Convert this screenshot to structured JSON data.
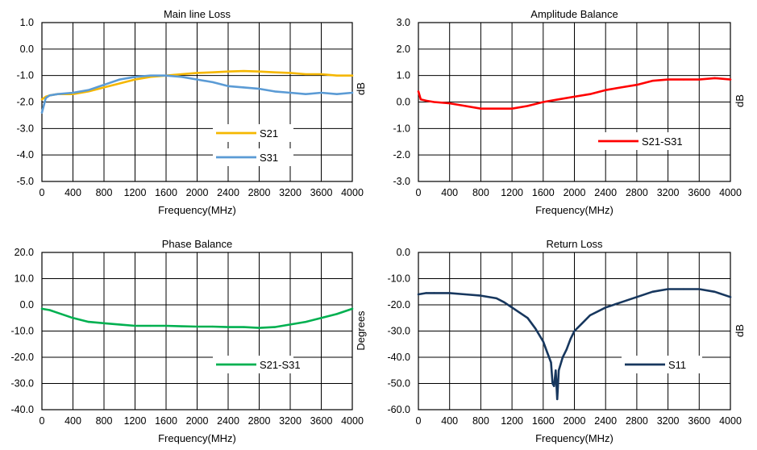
{
  "chart_data": [
    {
      "type": "line",
      "title": "Main line Loss",
      "xlabel": "Frequency(MHz)",
      "ylabel": "",
      "right_label": "dB",
      "xlim": [
        0,
        4000
      ],
      "ylim": [
        -5,
        1
      ],
      "grid": true,
      "legend_position": "bottom-right",
      "xticks": [
        "0",
        "400",
        "800",
        "1200",
        "1600",
        "2000",
        "2400",
        "2800",
        "3200",
        "3600",
        "4000"
      ],
      "yticks": [
        "1.0",
        "0.0",
        "-1.0",
        "-2.0",
        "-3.0",
        "-4.0",
        "-5.0"
      ],
      "x": [
        0,
        50,
        100,
        200,
        400,
        600,
        800,
        1000,
        1200,
        1400,
        1600,
        1800,
        2000,
        2200,
        2400,
        2600,
        2800,
        3000,
        3200,
        3400,
        3600,
        3800,
        4000
      ],
      "series": [
        {
          "name": "S21",
          "color": "#F5B700",
          "values": [
            -1.9,
            -1.8,
            -1.75,
            -1.7,
            -1.7,
            -1.6,
            -1.45,
            -1.3,
            -1.15,
            -1.05,
            -1.0,
            -0.95,
            -0.9,
            -0.88,
            -0.85,
            -0.83,
            -0.85,
            -0.88,
            -0.9,
            -0.95,
            -0.95,
            -1.0,
            -1.0
          ]
        },
        {
          "name": "S31",
          "color": "#5B9BD5",
          "values": [
            -2.4,
            -1.85,
            -1.75,
            -1.7,
            -1.65,
            -1.55,
            -1.35,
            -1.15,
            -1.05,
            -1.0,
            -1.0,
            -1.05,
            -1.15,
            -1.25,
            -1.4,
            -1.45,
            -1.5,
            -1.6,
            -1.65,
            -1.7,
            -1.65,
            -1.7,
            -1.65
          ]
        }
      ]
    },
    {
      "type": "line",
      "title": "Amplitude Balance",
      "xlabel": "Frequency(MHz)",
      "ylabel": "",
      "right_label": "dB",
      "xlim": [
        0,
        4000
      ],
      "ylim": [
        -3,
        3
      ],
      "grid": true,
      "legend_position": "bottom-right",
      "xticks": [
        "0",
        "400",
        "800",
        "1200",
        "1600",
        "2000",
        "2400",
        "2800",
        "3200",
        "3600",
        "4000"
      ],
      "yticks": [
        "3.0",
        "2.0",
        "1.0",
        "0.0",
        "-1.0",
        "-2.0",
        "-3.0"
      ],
      "x": [
        0,
        30,
        100,
        200,
        400,
        600,
        800,
        1000,
        1200,
        1400,
        1600,
        1800,
        2000,
        2200,
        2400,
        2600,
        2800,
        3000,
        3200,
        3400,
        3600,
        3800,
        4000
      ],
      "series": [
        {
          "name": "S21-S31",
          "color": "#FF0000",
          "values": [
            0.4,
            0.1,
            0.05,
            0.0,
            -0.05,
            -0.15,
            -0.25,
            -0.25,
            -0.25,
            -0.15,
            0.0,
            0.1,
            0.2,
            0.3,
            0.45,
            0.55,
            0.65,
            0.8,
            0.85,
            0.85,
            0.85,
            0.9,
            0.85
          ]
        }
      ]
    },
    {
      "type": "line",
      "title": "Phase Balance",
      "xlabel": "Frequency(MHz)",
      "ylabel": "",
      "right_label": "Degrees",
      "xlim": [
        0,
        4000
      ],
      "ylim": [
        -40,
        20
      ],
      "grid": true,
      "legend_position": "bottom-right",
      "xticks": [
        "0",
        "400",
        "800",
        "1200",
        "1600",
        "2000",
        "2400",
        "2800",
        "3200",
        "3600",
        "4000"
      ],
      "yticks": [
        "20.0",
        "10.0",
        "0.0",
        "-10.0",
        "-20.0",
        "-30.0",
        "-40.0"
      ],
      "x": [
        0,
        100,
        200,
        400,
        600,
        800,
        1000,
        1200,
        1400,
        1600,
        1800,
        2000,
        2200,
        2400,
        2600,
        2800,
        3000,
        3200,
        3400,
        3600,
        3800,
        4000
      ],
      "series": [
        {
          "name": "S21-S31",
          "color": "#00B050",
          "values": [
            -1.5,
            -2.0,
            -3.0,
            -5.0,
            -6.5,
            -7.0,
            -7.5,
            -8.0,
            -8.0,
            -8.0,
            -8.2,
            -8.3,
            -8.3,
            -8.5,
            -8.5,
            -8.8,
            -8.5,
            -7.5,
            -6.5,
            -5.0,
            -3.5,
            -1.5
          ]
        }
      ]
    },
    {
      "type": "line",
      "title": "Return Loss",
      "xlabel": "Frequency(MHz)",
      "ylabel": "",
      "right_label": "dB",
      "xlim": [
        0,
        4000
      ],
      "ylim": [
        -60,
        0
      ],
      "grid": true,
      "legend_position": "bottom-right",
      "xticks": [
        "0",
        "400",
        "800",
        "1200",
        "1600",
        "2000",
        "2400",
        "2800",
        "3200",
        "3600",
        "4000"
      ],
      "yticks": [
        "0.0",
        "-10.0",
        "-20.0",
        "-30.0",
        "-40.0",
        "-50.0",
        "-60.0"
      ],
      "x": [
        0,
        100,
        200,
        400,
        600,
        800,
        1000,
        1100,
        1200,
        1300,
        1400,
        1500,
        1600,
        1650,
        1700,
        1720,
        1740,
        1760,
        1780,
        1800,
        1850,
        1900,
        1950,
        2000,
        2100,
        2200,
        2400,
        2600,
        2800,
        3000,
        3200,
        3400,
        3600,
        3800,
        4000
      ],
      "series": [
        {
          "name": "S11",
          "color": "#17375E",
          "values": [
            -16,
            -15.5,
            -15.5,
            -15.5,
            -16,
            -16.5,
            -17.5,
            -19,
            -21,
            -23,
            -25,
            -29,
            -34,
            -38,
            -42,
            -50,
            -51,
            -45,
            -56,
            -45,
            -40,
            -37,
            -33,
            -30,
            -27,
            -24,
            -21,
            -19,
            -17,
            -15,
            -14,
            -14,
            -14,
            -15,
            -17
          ]
        }
      ]
    }
  ]
}
